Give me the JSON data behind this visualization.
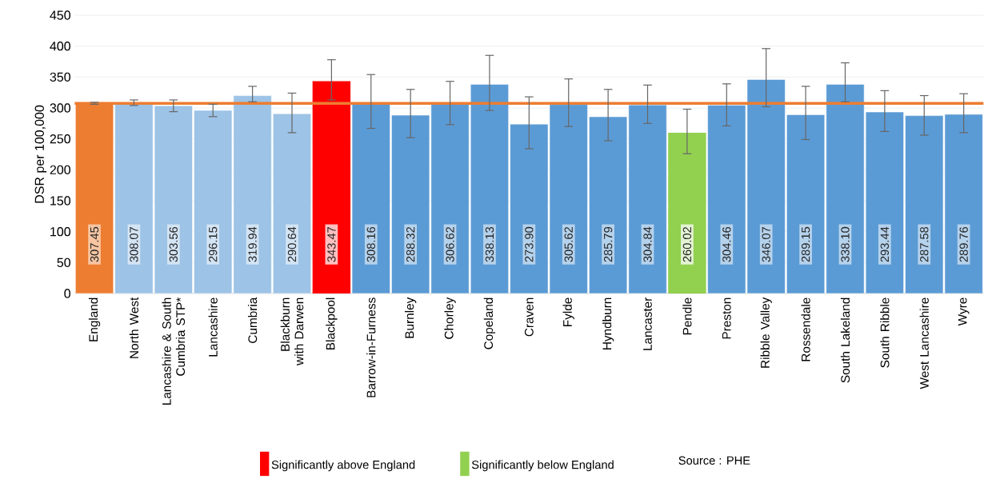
{
  "chart_data": {
    "type": "bar",
    "ylabel": "DSR per 100,000",
    "categories": [
      "England",
      "North West",
      "Lancashire & South Cumbria STP*",
      "Lancashire",
      "Cumbria",
      "Blackburn with Darwen",
      "Blackpool",
      "Barrow-in-Furness",
      "Burnley",
      "Chorley",
      "Copeland",
      "Craven",
      "Fylde",
      "Hyndburn",
      "Lancaster",
      "Pendle",
      "Preston",
      "Ribble Valley",
      "Rossendale",
      "South Lakeland",
      "South Ribble",
      "West Lancashire",
      "Wyre"
    ],
    "series": [
      {
        "colors": [
          "#ed7d31",
          "#9dc3e6",
          "#9dc3e6",
          "#9dc3e6",
          "#9dc3e6",
          "#9dc3e6",
          null,
          "#5b9bd5",
          "#5b9bd5",
          "#5b9bd5",
          "#5b9bd5",
          "#5b9bd5",
          "#5b9bd5",
          "#5b9bd5",
          "#5b9bd5",
          null,
          "#5b9bd5",
          "#5b9bd5",
          "#5b9bd5",
          "#5b9bd5",
          "#5b9bd5",
          "#5b9bd5",
          "#5b9bd5"
        ],
        "values": [
          307.45,
          308.07,
          303.56,
          296.15,
          319.94,
          290.64,
          null,
          308.16,
          288.32,
          306.62,
          338.13,
          273.9,
          305.62,
          285.79,
          304.84,
          null,
          304.46,
          346.07,
          289.15,
          338.1,
          293.44,
          287.58,
          289.76
        ],
        "value_labels": [
          "307.45",
          "308.07",
          "303.56",
          "296.15",
          "319.94",
          "290.64",
          null,
          "308.16",
          "288.32",
          "306.62",
          "338.13",
          "273.90",
          "305.62",
          "285.79",
          "304.84",
          null,
          "304.46",
          "346.07",
          "289.15",
          "338.10",
          "293.44",
          "287.58",
          "289.76"
        ],
        "errors": [
          [
            306,
            309
          ],
          [
            304,
            313
          ],
          [
            294,
            313
          ],
          [
            286,
            306
          ],
          [
            310,
            335
          ],
          [
            260,
            324
          ],
          null,
          [
            267,
            354
          ],
          [
            252,
            330
          ],
          [
            273,
            343
          ],
          [
            296,
            385
          ],
          [
            234,
            318
          ],
          [
            270,
            347
          ],
          [
            247,
            330
          ],
          [
            275,
            337
          ],
          null,
          [
            271,
            339
          ],
          [
            302,
            396
          ],
          [
            249,
            335
          ],
          [
            310,
            373
          ],
          [
            262,
            328
          ],
          [
            256,
            320
          ],
          [
            260,
            323
          ]
        ]
      },
      {
        "name": "Significantly above England",
        "color": "#ff0000",
        "values": [
          null,
          null,
          null,
          null,
          null,
          null,
          343.47,
          null,
          null,
          null,
          null,
          null,
          null,
          null,
          null,
          null,
          null,
          null,
          null,
          null,
          null,
          null,
          null
        ],
        "value_labels": [
          null,
          null,
          null,
          null,
          null,
          null,
          "343.47",
          null,
          null,
          null,
          null,
          null,
          null,
          null,
          null,
          null,
          null,
          null,
          null,
          null,
          null,
          null,
          null
        ],
        "errors": [
          null,
          null,
          null,
          null,
          null,
          null,
          [
            313,
            378
          ],
          null,
          null,
          null,
          null,
          null,
          null,
          null,
          null,
          null,
          null,
          null,
          null,
          null,
          null,
          null,
          null
        ]
      },
      {
        "name": "Significantly below England",
        "color": "#92d050",
        "values": [
          null,
          null,
          null,
          null,
          null,
          null,
          null,
          null,
          null,
          null,
          null,
          null,
          null,
          null,
          null,
          260.02,
          null,
          null,
          null,
          null,
          null,
          null,
          null
        ],
        "value_labels": [
          null,
          null,
          null,
          null,
          null,
          null,
          null,
          null,
          null,
          null,
          null,
          null,
          null,
          null,
          null,
          "260.02",
          null,
          null,
          null,
          null,
          null,
          null,
          null
        ],
        "errors": [
          null,
          null,
          null,
          null,
          null,
          null,
          null,
          null,
          null,
          null,
          null,
          null,
          null,
          null,
          null,
          [
            226,
            298
          ],
          null,
          null,
          null,
          null,
          null,
          null,
          null
        ]
      }
    ],
    "ylim": [
      0,
      450
    ],
    "yticks": [
      0,
      50,
      100,
      150,
      200,
      250,
      300,
      350,
      400,
      450
    ],
    "ref_lines": [
      {
        "axis": "y",
        "value": 307.45,
        "color": "#ed7d31"
      }
    ],
    "grid": "y",
    "legend": "bottom",
    "annotations": [
      "Source : PHE"
    ]
  }
}
